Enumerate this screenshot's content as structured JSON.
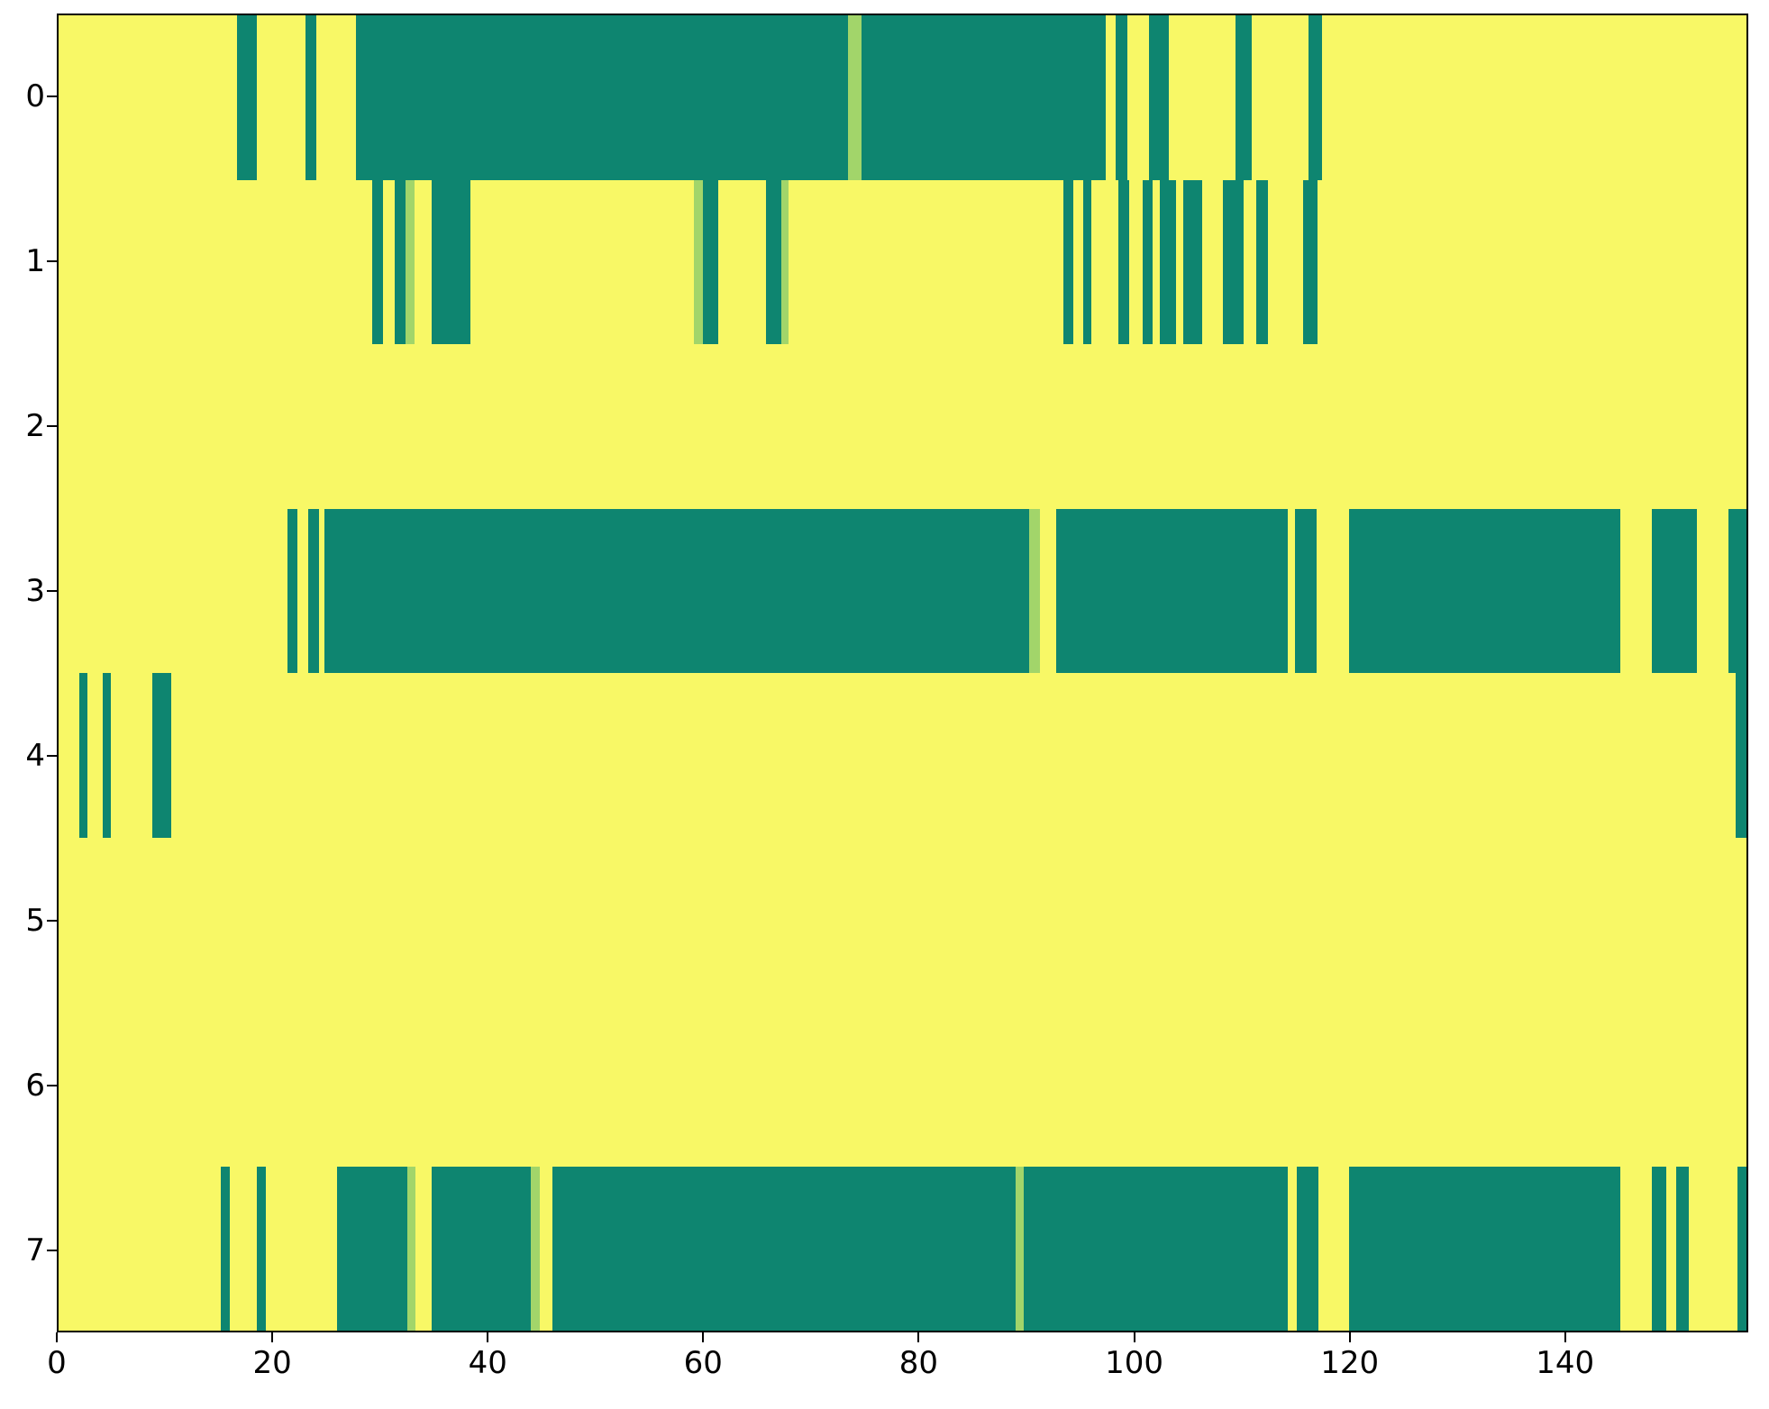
{
  "figure": {
    "background_color": "#ffffff",
    "axis_frame_color": "#000000",
    "tick_color": "#000000"
  },
  "chart_data": {
    "type": "heatmap",
    "title": "",
    "xlabel": "",
    "ylabel": "",
    "legend": null,
    "grid": false,
    "x_axis": {
      "min": 0,
      "max": 157,
      "ticks": [
        0,
        20,
        40,
        60,
        80,
        100,
        120,
        140
      ]
    },
    "y_axis": {
      "labels": [
        "0",
        "1",
        "2",
        "3",
        "4",
        "5",
        "6",
        "7"
      ]
    },
    "colors": {
      "low": "#f8f866",
      "high": "#0e8570",
      "mid": "#a2d56a"
    },
    "rows": [
      {
        "label": "0",
        "segments": [
          {
            "s": 16.6,
            "e": 18.4,
            "c": "high"
          },
          {
            "s": 23.0,
            "e": 24.0,
            "c": "high"
          },
          {
            "s": 27.7,
            "e": 73.4,
            "c": "high"
          },
          {
            "s": 73.4,
            "e": 74.7,
            "c": "mid"
          },
          {
            "s": 74.7,
            "e": 97.4,
            "c": "high"
          },
          {
            "s": 98.3,
            "e": 99.4,
            "c": "high"
          },
          {
            "s": 101.4,
            "e": 103.3,
            "c": "high"
          },
          {
            "s": 109.5,
            "e": 111.0,
            "c": "high"
          },
          {
            "s": 116.3,
            "e": 117.5,
            "c": "high"
          }
        ]
      },
      {
        "label": "1",
        "segments": [
          {
            "s": 29.2,
            "e": 30.2,
            "c": "high"
          },
          {
            "s": 31.3,
            "e": 32.3,
            "c": "high"
          },
          {
            "s": 32.3,
            "e": 33.1,
            "c": "mid"
          },
          {
            "s": 34.7,
            "e": 38.3,
            "c": "high"
          },
          {
            "s": 59.1,
            "e": 59.9,
            "c": "mid"
          },
          {
            "s": 59.9,
            "e": 61.4,
            "c": "high"
          },
          {
            "s": 65.8,
            "e": 67.2,
            "c": "high"
          },
          {
            "s": 67.2,
            "e": 67.9,
            "c": "mid"
          },
          {
            "s": 93.5,
            "e": 94.4,
            "c": "high"
          },
          {
            "s": 95.3,
            "e": 96.1,
            "c": "high"
          },
          {
            "s": 98.6,
            "e": 99.6,
            "c": "high"
          },
          {
            "s": 100.8,
            "e": 101.8,
            "c": "high"
          },
          {
            "s": 102.4,
            "e": 103.9,
            "c": "high"
          },
          {
            "s": 104.6,
            "e": 106.4,
            "c": "high"
          },
          {
            "s": 108.3,
            "e": 110.2,
            "c": "high"
          },
          {
            "s": 111.4,
            "e": 112.5,
            "c": "high"
          },
          {
            "s": 115.8,
            "e": 117.1,
            "c": "high"
          }
        ]
      },
      {
        "label": "2",
        "segments": []
      },
      {
        "label": "3",
        "segments": [
          {
            "s": 21.3,
            "e": 22.2,
            "c": "high"
          },
          {
            "s": 23.2,
            "e": 24.2,
            "c": "high"
          },
          {
            "s": 24.7,
            "e": 90.3,
            "c": "high"
          },
          {
            "s": 90.3,
            "e": 91.3,
            "c": "mid"
          },
          {
            "s": 92.8,
            "e": 114.3,
            "c": "high"
          },
          {
            "s": 115.0,
            "e": 117.0,
            "c": "high"
          },
          {
            "s": 120.0,
            "e": 145.3,
            "c": "high"
          },
          {
            "s": 148.2,
            "e": 152.4,
            "c": "high"
          },
          {
            "s": 155.3,
            "e": 157.0,
            "c": "high"
          }
        ]
      },
      {
        "label": "4",
        "segments": [
          {
            "s": 1.9,
            "e": 2.7,
            "c": "high"
          },
          {
            "s": 4.1,
            "e": 4.9,
            "c": "high"
          },
          {
            "s": 8.7,
            "e": 10.5,
            "c": "high"
          },
          {
            "s": 156.0,
            "e": 157.0,
            "c": "high"
          }
        ]
      },
      {
        "label": "5",
        "segments": []
      },
      {
        "label": "6",
        "segments": []
      },
      {
        "label": "7",
        "segments": [
          {
            "s": 15.1,
            "e": 15.9,
            "c": "high"
          },
          {
            "s": 18.4,
            "e": 19.3,
            "c": "high"
          },
          {
            "s": 25.9,
            "e": 32.4,
            "c": "high"
          },
          {
            "s": 32.4,
            "e": 33.2,
            "c": "mid"
          },
          {
            "s": 34.7,
            "e": 43.9,
            "c": "high"
          },
          {
            "s": 43.9,
            "e": 44.8,
            "c": "mid"
          },
          {
            "s": 45.9,
            "e": 89.0,
            "c": "high"
          },
          {
            "s": 89.0,
            "e": 89.8,
            "c": "mid"
          },
          {
            "s": 89.8,
            "e": 114.3,
            "c": "high"
          },
          {
            "s": 115.2,
            "e": 117.2,
            "c": "high"
          },
          {
            "s": 120.0,
            "e": 145.3,
            "c": "high"
          },
          {
            "s": 148.2,
            "e": 149.5,
            "c": "high"
          },
          {
            "s": 150.5,
            "e": 151.6,
            "c": "high"
          },
          {
            "s": 156.2,
            "e": 157.0,
            "c": "high"
          }
        ]
      }
    ]
  }
}
